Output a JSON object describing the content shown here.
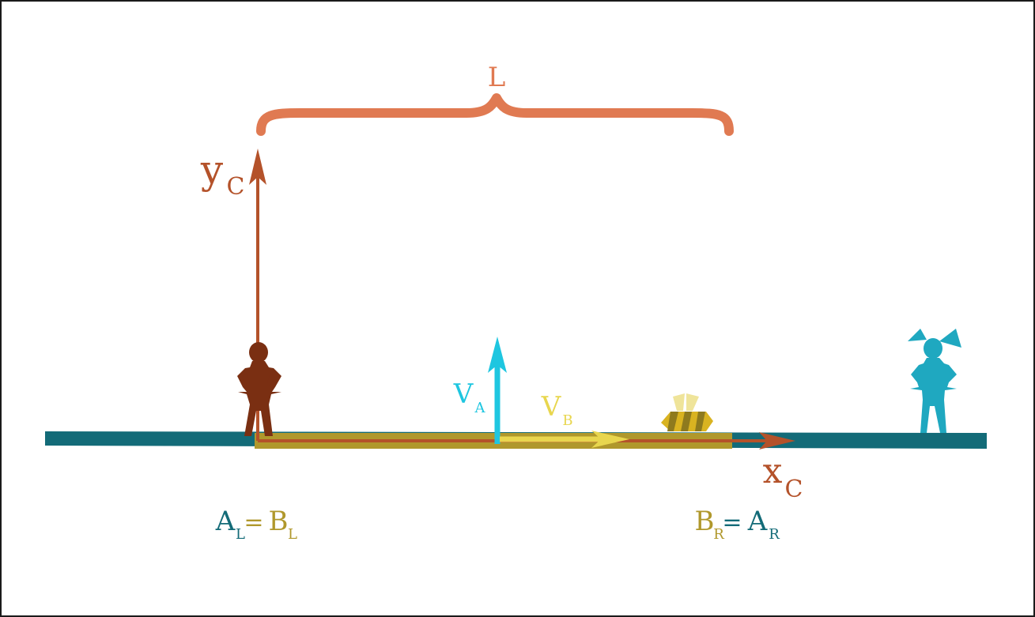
{
  "diagram": {
    "brace_label": "L",
    "y_axis": {
      "main": "y",
      "sub": "C"
    },
    "x_axis": {
      "main": "x",
      "sub": "C"
    },
    "velocity_a": {
      "main": "V",
      "sub": "A"
    },
    "velocity_b": {
      "main": "V",
      "sub": "B"
    },
    "left_equation": {
      "a_main": "A",
      "a_sub": "L",
      "equals": "=",
      "b_main": "B",
      "b_sub": "L"
    },
    "right_equation": {
      "b_main": "B",
      "b_sub": "R",
      "equals": "=",
      "a_main": "A",
      "a_sub": "R"
    }
  },
  "colors": {
    "train_a": "#136b78",
    "train_b": "#b0982c",
    "frame_c": "#b4522a",
    "brace": "#e07a52",
    "velocity_a": "#1ec6e0",
    "velocity_b": "#e8d64e",
    "person_left": "#7a2f12",
    "person_right": "#1fa8c0",
    "bee": "#d9b321"
  }
}
